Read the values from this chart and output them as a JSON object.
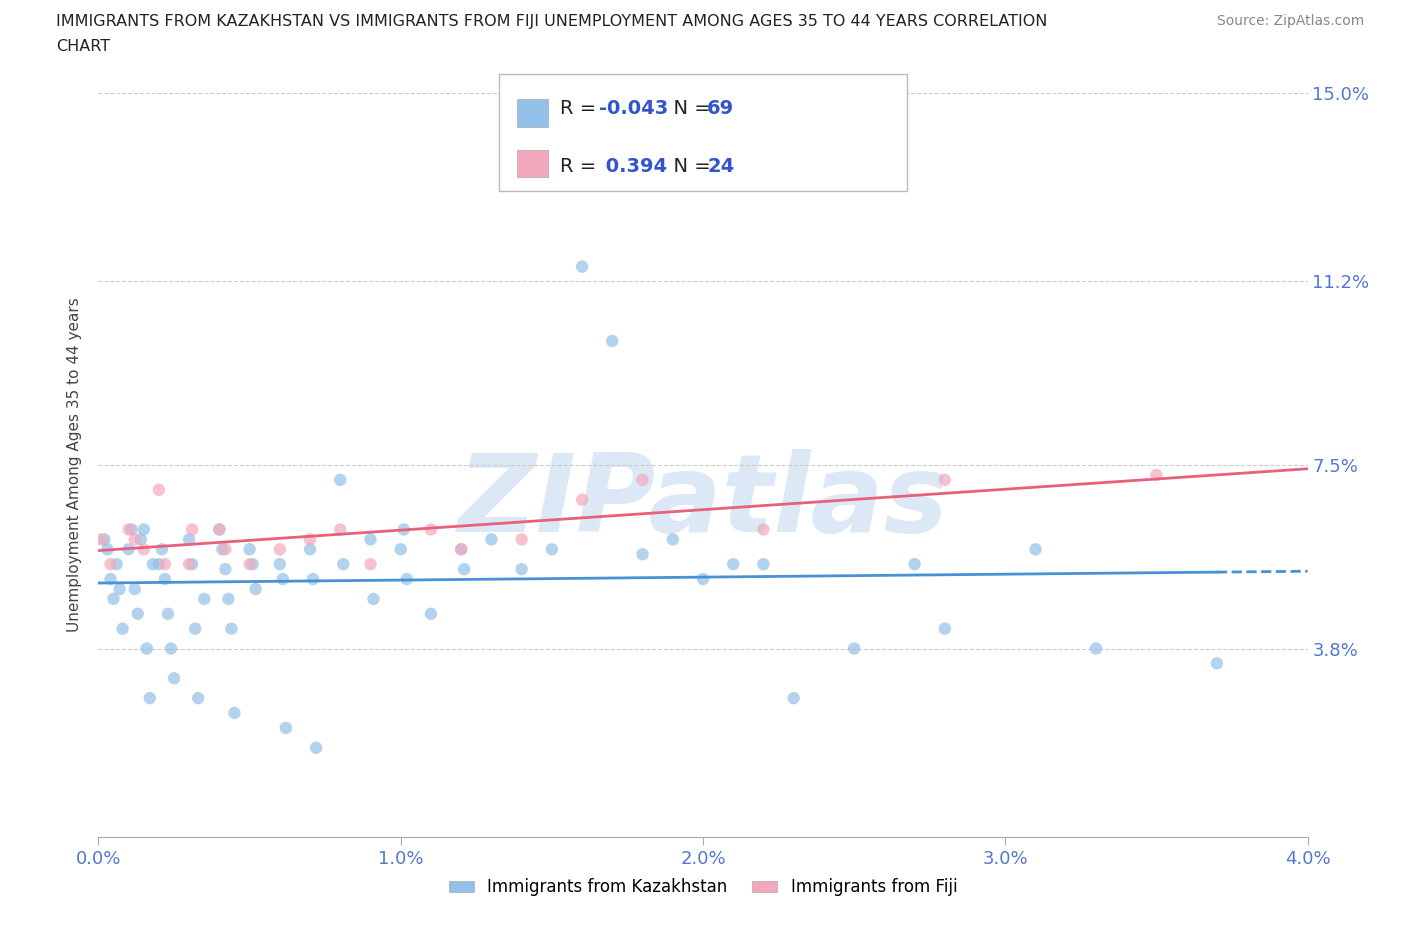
{
  "title_line1": "IMMIGRANTS FROM KAZAKHSTAN VS IMMIGRANTS FROM FIJI UNEMPLOYMENT AMONG AGES 35 TO 44 YEARS CORRELATION",
  "title_line2": "CHART",
  "source": "Source: ZipAtlas.com",
  "ylabel": "Unemployment Among Ages 35 to 44 years",
  "xlim": [
    0.0,
    0.04
  ],
  "ylim": [
    0.0,
    0.15
  ],
  "yticks": [
    0.038,
    0.075,
    0.112,
    0.15
  ],
  "ytick_labels": [
    "3.8%",
    "7.5%",
    "11.2%",
    "15.0%"
  ],
  "xticks": [
    0.0,
    0.01,
    0.02,
    0.03,
    0.04
  ],
  "xtick_labels": [
    "0.0%",
    "1.0%",
    "2.0%",
    "3.0%",
    "4.0%"
  ],
  "kazakhstan_color": "#92c0e8",
  "fiji_color": "#f4a8bc",
  "trend_kazakhstan_color": "#4a90d4",
  "trend_fiji_color": "#e8607a",
  "watermark_color": "#dce8f5",
  "tick_color": "#5577cc",
  "R_kazakhstan": -0.043,
  "N_kazakhstan": 69,
  "R_fiji": 0.394,
  "N_fiji": 24,
  "kazakhstan_x": [
    0.0002,
    0.0003,
    0.0004,
    0.0005,
    0.0006,
    0.0007,
    0.0008,
    0.001,
    0.0011,
    0.0012,
    0.0013,
    0.0014,
    0.0015,
    0.0016,
    0.0017,
    0.0018,
    0.002,
    0.0021,
    0.0022,
    0.0023,
    0.0024,
    0.0025,
    0.003,
    0.0031,
    0.0032,
    0.0033,
    0.0035,
    0.004,
    0.0041,
    0.0042,
    0.0043,
    0.0044,
    0.0045,
    0.005,
    0.0051,
    0.0052,
    0.006,
    0.0061,
    0.0062,
    0.007,
    0.0071,
    0.0072,
    0.008,
    0.0081,
    0.009,
    0.0091,
    0.01,
    0.0101,
    0.0102,
    0.011,
    0.012,
    0.0121,
    0.013,
    0.014,
    0.015,
    0.016,
    0.017,
    0.018,
    0.019,
    0.02,
    0.021,
    0.022,
    0.023,
    0.025,
    0.027,
    0.028,
    0.031,
    0.033,
    0.037
  ],
  "kazakhstan_y": [
    0.06,
    0.058,
    0.052,
    0.048,
    0.055,
    0.05,
    0.042,
    0.058,
    0.062,
    0.05,
    0.045,
    0.06,
    0.062,
    0.038,
    0.028,
    0.055,
    0.055,
    0.058,
    0.052,
    0.045,
    0.038,
    0.032,
    0.06,
    0.055,
    0.042,
    0.028,
    0.048,
    0.062,
    0.058,
    0.054,
    0.048,
    0.042,
    0.025,
    0.058,
    0.055,
    0.05,
    0.055,
    0.052,
    0.022,
    0.058,
    0.052,
    0.018,
    0.072,
    0.055,
    0.06,
    0.048,
    0.058,
    0.062,
    0.052,
    0.045,
    0.058,
    0.054,
    0.06,
    0.054,
    0.058,
    0.115,
    0.1,
    0.057,
    0.06,
    0.052,
    0.055,
    0.055,
    0.028,
    0.038,
    0.055,
    0.042,
    0.058,
    0.038,
    0.035
  ],
  "fiji_x": [
    0.0001,
    0.0004,
    0.001,
    0.0012,
    0.0015,
    0.002,
    0.0022,
    0.003,
    0.0031,
    0.004,
    0.0042,
    0.005,
    0.006,
    0.007,
    0.008,
    0.009,
    0.011,
    0.012,
    0.014,
    0.016,
    0.018,
    0.022,
    0.028,
    0.035
  ],
  "fiji_y": [
    0.06,
    0.055,
    0.062,
    0.06,
    0.058,
    0.07,
    0.055,
    0.055,
    0.062,
    0.062,
    0.058,
    0.055,
    0.058,
    0.06,
    0.062,
    0.055,
    0.062,
    0.058,
    0.06,
    0.068,
    0.072,
    0.062,
    0.072,
    0.073
  ]
}
